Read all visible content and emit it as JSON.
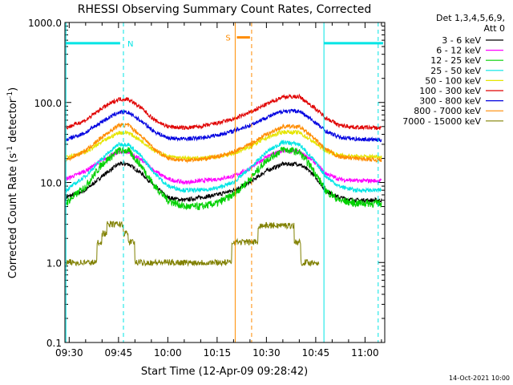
{
  "chart_data": {
    "type": "line",
    "title": "RHESSI Observing Summary Count Rates, Corrected",
    "xlabel": "Start Time (12-Apr-09 09:28:42)",
    "ylabel": "Corrected Count Rate (s-1 detector-1)",
    "ylabel_parts": {
      "pre": "Corrected Count Rate (s",
      "sup1": "-1",
      "mid": " detector",
      "sup2": "-1",
      "post": ")"
    },
    "yscale": "log",
    "ylim": [
      0.1,
      1000
    ],
    "xlim": [
      "09:28:42",
      "11:06:00"
    ],
    "x_ticks": [
      "09:30",
      "09:45",
      "10:00",
      "10:15",
      "10:30",
      "10:45",
      "11:00"
    ],
    "y_ticks": [
      "0.1",
      "1.0",
      "10.0",
      "100.0",
      "1000.0"
    ],
    "legend_header": [
      "Det 1,3,4,5,6,9,",
      "Att 0"
    ],
    "legend_position": "right",
    "timestamp": "14-Oct-2021 10:00",
    "markers": [
      {
        "time": "09:29:00",
        "color": "#00e5e5",
        "style": "solid"
      },
      {
        "time": "09:46:30",
        "color": "#00e5e5",
        "style": "dashed",
        "label": "N"
      },
      {
        "time": "10:20:30",
        "color": "#ff8c00",
        "style": "solid",
        "label": "S"
      },
      {
        "time": "10:25:30",
        "color": "#ff8c00",
        "style": "dashed"
      },
      {
        "time": "10:47:30",
        "color": "#00e5e5",
        "style": "solid"
      },
      {
        "time": "11:04:00",
        "color": "#00e5e5",
        "style": "dashed"
      }
    ],
    "bars": [
      {
        "color": "#00e5e5",
        "y": 550,
        "from": "09:29:00",
        "to": "09:45:30"
      },
      {
        "color": "#00e5e5",
        "y": 550,
        "from": "10:47:30",
        "to": "11:05:30"
      },
      {
        "color": "#ff8c00",
        "y": 650,
        "from": "10:21:00",
        "to": "10:25:00"
      }
    ],
    "series": [
      {
        "name": "3 - 6 keV",
        "color": "#000000",
        "points": [
          [
            "09:29",
            6.5
          ],
          [
            "09:35",
            8
          ],
          [
            "09:40",
            12
          ],
          [
            "09:45",
            17
          ],
          [
            "09:48",
            17
          ],
          [
            "09:52",
            13
          ],
          [
            "09:56",
            9
          ],
          [
            "10:00",
            6.5
          ],
          [
            "10:05",
            6
          ],
          [
            "10:10",
            6.5
          ],
          [
            "10:15",
            7
          ],
          [
            "10:20",
            8
          ],
          [
            "10:25",
            10
          ],
          [
            "10:30",
            14
          ],
          [
            "10:35",
            17
          ],
          [
            "10:40",
            17
          ],
          [
            "10:44",
            13
          ],
          [
            "10:48",
            8
          ],
          [
            "10:52",
            6.5
          ],
          [
            "10:57",
            6
          ],
          [
            "11:05",
            6
          ]
        ]
      },
      {
        "name": "6 - 12 keV",
        "color": "#ff00ff",
        "points": [
          [
            "09:29",
            11
          ],
          [
            "09:35",
            14
          ],
          [
            "09:40",
            19
          ],
          [
            "09:45",
            24
          ],
          [
            "09:48",
            24
          ],
          [
            "09:52",
            19
          ],
          [
            "09:56",
            14
          ],
          [
            "10:00",
            11
          ],
          [
            "10:05",
            10
          ],
          [
            "10:10",
            10.5
          ],
          [
            "10:15",
            11
          ],
          [
            "10:20",
            12
          ],
          [
            "10:25",
            15
          ],
          [
            "10:30",
            21
          ],
          [
            "10:35",
            25
          ],
          [
            "10:40",
            24
          ],
          [
            "10:44",
            19
          ],
          [
            "10:48",
            13
          ],
          [
            "10:52",
            11
          ],
          [
            "10:57",
            10.5
          ],
          [
            "11:05",
            10.5
          ]
        ]
      },
      {
        "name": "12 - 25 keV",
        "color": "#00d000",
        "points": [
          [
            "09:29",
            5.5
          ],
          [
            "09:35",
            9
          ],
          [
            "09:40",
            17
          ],
          [
            "09:45",
            25
          ],
          [
            "09:48",
            25
          ],
          [
            "09:52",
            16
          ],
          [
            "09:56",
            9
          ],
          [
            "10:00",
            6
          ],
          [
            "10:05",
            5
          ],
          [
            "10:10",
            5
          ],
          [
            "10:15",
            5.5
          ],
          [
            "10:20",
            7
          ],
          [
            "10:25",
            11
          ],
          [
            "10:30",
            19
          ],
          [
            "10:35",
            26
          ],
          [
            "10:40",
            24
          ],
          [
            "10:44",
            15
          ],
          [
            "10:48",
            8
          ],
          [
            "10:52",
            6
          ],
          [
            "10:57",
            5.5
          ],
          [
            "11:05",
            5.5
          ]
        ]
      },
      {
        "name": "25 - 50 keV",
        "color": "#00e5e5",
        "points": [
          [
            "09:29",
            8
          ],
          [
            "09:35",
            12
          ],
          [
            "09:40",
            20
          ],
          [
            "09:45",
            30
          ],
          [
            "09:48",
            30
          ],
          [
            "09:52",
            21
          ],
          [
            "09:56",
            13
          ],
          [
            "10:00",
            9
          ],
          [
            "10:05",
            8
          ],
          [
            "10:10",
            8
          ],
          [
            "10:15",
            8.5
          ],
          [
            "10:20",
            10
          ],
          [
            "10:25",
            15
          ],
          [
            "10:30",
            24
          ],
          [
            "10:35",
            32
          ],
          [
            "10:40",
            30
          ],
          [
            "10:44",
            20
          ],
          [
            "10:48",
            12
          ],
          [
            "10:52",
            9
          ],
          [
            "10:57",
            8
          ],
          [
            "11:05",
            8
          ]
        ]
      },
      {
        "name": "50 - 100 keV",
        "color": "#e5e500",
        "points": [
          [
            "09:29",
            21
          ],
          [
            "09:35",
            24
          ],
          [
            "09:40",
            32
          ],
          [
            "09:45",
            42
          ],
          [
            "09:48",
            42
          ],
          [
            "09:52",
            33
          ],
          [
            "09:56",
            25
          ],
          [
            "10:00",
            21
          ],
          [
            "10:05",
            20
          ],
          [
            "10:10",
            20
          ],
          [
            "10:15",
            21
          ],
          [
            "10:20",
            23
          ],
          [
            "10:25",
            28
          ],
          [
            "10:30",
            36
          ],
          [
            "10:35",
            43
          ],
          [
            "10:40",
            42
          ],
          [
            "10:44",
            33
          ],
          [
            "10:48",
            25
          ],
          [
            "10:52",
            22
          ],
          [
            "10:57",
            21
          ],
          [
            "11:05",
            21
          ]
        ]
      },
      {
        "name": "100 - 300 keV",
        "color": "#e00000",
        "points": [
          [
            "09:29",
            48
          ],
          [
            "09:35",
            60
          ],
          [
            "09:40",
            85
          ],
          [
            "09:45",
            110
          ],
          [
            "09:48",
            110
          ],
          [
            "09:52",
            85
          ],
          [
            "09:56",
            60
          ],
          [
            "10:00",
            50
          ],
          [
            "10:05",
            48
          ],
          [
            "10:10",
            50
          ],
          [
            "10:15",
            55
          ],
          [
            "10:20",
            62
          ],
          [
            "10:25",
            75
          ],
          [
            "10:30",
            95
          ],
          [
            "10:35",
            118
          ],
          [
            "10:40",
            118
          ],
          [
            "10:44",
            90
          ],
          [
            "10:48",
            65
          ],
          [
            "10:52",
            52
          ],
          [
            "10:57",
            49
          ],
          [
            "11:05",
            48
          ]
        ]
      },
      {
        "name": "300 - 800 keV",
        "color": "#0000e0",
        "points": [
          [
            "09:29",
            34
          ],
          [
            "09:35",
            42
          ],
          [
            "09:40",
            58
          ],
          [
            "09:45",
            75
          ],
          [
            "09:48",
            75
          ],
          [
            "09:52",
            58
          ],
          [
            "09:56",
            43
          ],
          [
            "10:00",
            36
          ],
          [
            "10:05",
            35
          ],
          [
            "10:10",
            36
          ],
          [
            "10:15",
            39
          ],
          [
            "10:20",
            44
          ],
          [
            "10:25",
            52
          ],
          [
            "10:30",
            65
          ],
          [
            "10:35",
            78
          ],
          [
            "10:40",
            78
          ],
          [
            "10:44",
            60
          ],
          [
            "10:48",
            44
          ],
          [
            "10:52",
            37
          ],
          [
            "10:57",
            35
          ],
          [
            "11:05",
            34
          ]
        ]
      },
      {
        "name": "800 - 7000 keV",
        "color": "#ff8c00",
        "points": [
          [
            "09:29",
            19
          ],
          [
            "09:35",
            25
          ],
          [
            "09:40",
            37
          ],
          [
            "09:45",
            52
          ],
          [
            "09:48",
            52
          ],
          [
            "09:52",
            38
          ],
          [
            "09:56",
            26
          ],
          [
            "10:00",
            20
          ],
          [
            "10:05",
            19
          ],
          [
            "10:10",
            19.5
          ],
          [
            "10:15",
            21
          ],
          [
            "10:20",
            24
          ],
          [
            "10:25",
            30
          ],
          [
            "10:30",
            40
          ],
          [
            "10:35",
            50
          ],
          [
            "10:40",
            50
          ],
          [
            "10:44",
            37
          ],
          [
            "10:48",
            26
          ],
          [
            "10:52",
            21
          ],
          [
            "10:57",
            20
          ],
          [
            "11:05",
            19
          ]
        ]
      },
      {
        "name": "7000 - 15000 keV",
        "color": "#808000",
        "points": [
          [
            "09:29",
            1.0
          ],
          [
            "09:38",
            1.0
          ],
          [
            "09:39",
            1.8
          ],
          [
            "09:41",
            2.3
          ],
          [
            "09:42",
            3.0
          ],
          [
            "09:46",
            3.0
          ],
          [
            "09:47",
            2.3
          ],
          [
            "09:49",
            1.8
          ],
          [
            "09:51",
            1.0
          ],
          [
            "09:53",
            1.0
          ],
          [
            "10:17",
            1.0
          ],
          [
            "10:19",
            1.0
          ],
          [
            "10:20",
            1.8
          ],
          [
            "10:27",
            1.8
          ],
          [
            "10:28",
            2.9
          ],
          [
            "10:38",
            2.9
          ],
          [
            "10:39",
            1.8
          ],
          [
            "10:42",
            1.0
          ],
          [
            "10:46",
            1.0
          ]
        ]
      }
    ]
  }
}
